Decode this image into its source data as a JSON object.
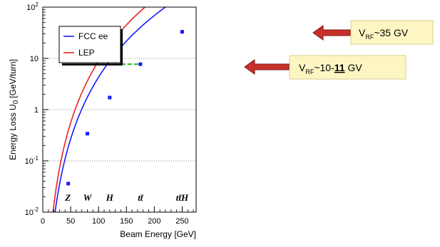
{
  "chart_data": {
    "type": "line",
    "xlabel": "Beam Energy [GeV]",
    "ylabel_main": "Energy Loss U",
    "ylabel_sub": "0",
    "ylabel_unit": "[GeV/turn]",
    "xlim": [
      0,
      275
    ],
    "ylim": [
      0.01,
      100
    ],
    "yscale": "log",
    "grid": "horizontal dotted",
    "legend_position": "top-left",
    "x_ticks": [
      {
        "v": 0,
        "label": "0"
      },
      {
        "v": 50,
        "label": "50"
      },
      {
        "v": 100,
        "label": "100"
      },
      {
        "v": 150,
        "label": "150"
      },
      {
        "v": 200,
        "label": "200"
      },
      {
        "v": 250,
        "label": "250"
      }
    ],
    "y_ticks": [
      {
        "v": 0.01,
        "base": "10",
        "exp": "-2"
      },
      {
        "v": 0.1,
        "base": "10",
        "exp": "-1"
      },
      {
        "v": 1,
        "base": "1",
        "exp": ""
      },
      {
        "v": 10,
        "base": "10",
        "exp": ""
      },
      {
        "v": 100,
        "base": "10",
        "exp": "2"
      }
    ],
    "series": [
      {
        "name": "FCC ee",
        "color": "#1a1aff",
        "coef": 4.28e-08,
        "points": [
          [
            45.6,
            0.036
          ],
          [
            80,
            0.34
          ],
          [
            120,
            1.72
          ],
          [
            175,
            7.7
          ],
          [
            250,
            33
          ]
        ]
      },
      {
        "name": "LEP",
        "color": "#e8231f",
        "coef": 8.85e-08,
        "points": []
      }
    ],
    "process_labels": [
      {
        "x": 45,
        "label": "Z"
      },
      {
        "x": 80,
        "label": "W"
      },
      {
        "x": 120,
        "label": "H"
      },
      {
        "x": 175,
        "label": "tt̄"
      },
      {
        "x": 250,
        "label": "tt̄H"
      }
    ],
    "dashed_line": {
      "color": "#2db82d",
      "x_start": 129,
      "x_end": 175,
      "y": 7.7
    },
    "callouts": [
      {
        "sym": "V",
        "sub": "RF",
        "pre": "~35 GV",
        "bold": "",
        "post": ""
      },
      {
        "sym": "V",
        "sub": "RF",
        "pre": "~10-",
        "bold": "11",
        "post": " GV"
      }
    ],
    "callout_bg": "#fdf6c3",
    "arrow_color": "#c8302a"
  }
}
